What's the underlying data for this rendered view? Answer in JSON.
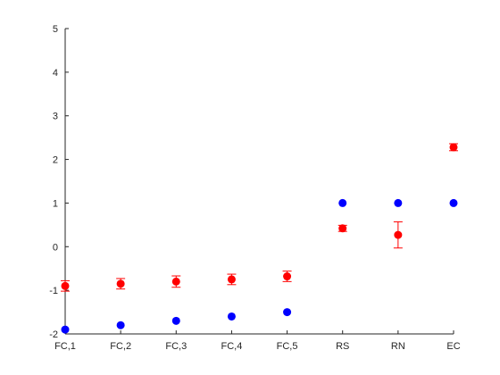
{
  "chart_data": {
    "type": "scatter",
    "categories": [
      "FC,1",
      "FC,2",
      "FC,3",
      "FC,4",
      "FC,5",
      "RS",
      "RN",
      "EC"
    ],
    "ylim": [
      -2,
      5
    ],
    "yticks": [
      -2,
      -1,
      0,
      1,
      2,
      3,
      4,
      5
    ],
    "grid": false,
    "legend": "none",
    "series": [
      {
        "color": "#0000ff",
        "values": [
          -1.9,
          -1.8,
          -1.7,
          -1.6,
          -1.5,
          1.0,
          1.0,
          1.0
        ]
      },
      {
        "color": "#ff0000",
        "values": [
          -0.9,
          -0.85,
          -0.8,
          -0.75,
          -0.68,
          0.42,
          0.27,
          2.28
        ],
        "error": [
          0.12,
          0.12,
          0.13,
          0.12,
          0.12,
          0.07,
          0.3,
          0.08
        ]
      }
    ]
  }
}
